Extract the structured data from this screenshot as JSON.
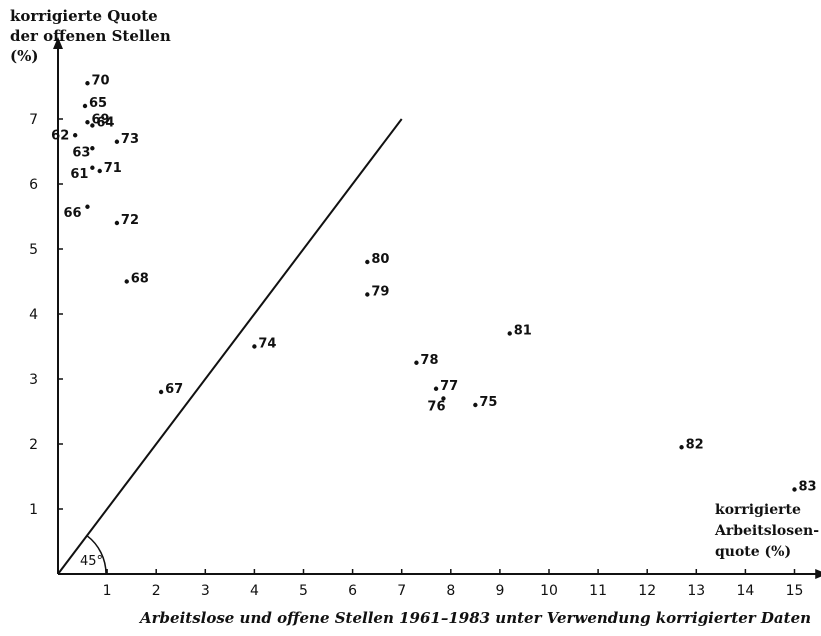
{
  "chart_data": {
    "type": "scatter",
    "ylabel_lines": [
      "korrigierte Quote",
      "der offenen Stellen",
      "(%)"
    ],
    "xlabel_lines": [
      "korrigierte",
      "Arbeitslosen-",
      "quote (%)"
    ],
    "caption": "Arbeitslose und offene Stellen 1961–1983 unter Verwendung korrigierter Daten",
    "angle_label": "45°",
    "xlim": [
      0,
      15.3
    ],
    "ylim": [
      0,
      7.8
    ],
    "xticks": [
      "1",
      "2",
      "3",
      "4",
      "5",
      "6",
      "7",
      "8",
      "9",
      "10",
      "11",
      "12",
      "13",
      "14",
      "15"
    ],
    "yticks": [
      "1",
      "2",
      "3",
      "4",
      "5",
      "6",
      "7"
    ],
    "reference_line": {
      "from": [
        0,
        0
      ],
      "to": [
        7,
        7
      ]
    },
    "points": [
      {
        "label": "70",
        "x": 0.6,
        "y": 7.55
      },
      {
        "label": "65",
        "x": 0.55,
        "y": 7.2
      },
      {
        "label": "69",
        "x": 0.6,
        "y": 6.95
      },
      {
        "label": "64",
        "x": 0.7,
        "y": 6.9
      },
      {
        "label": "73",
        "x": 1.2,
        "y": 6.65
      },
      {
        "label": "62",
        "x": 0.35,
        "y": 6.75
      },
      {
        "label": "63",
        "x": 0.7,
        "y": 6.55
      },
      {
        "label": "61",
        "x": 0.7,
        "y": 6.25
      },
      {
        "label": "71",
        "x": 0.85,
        "y": 6.2
      },
      {
        "label": "66",
        "x": 0.6,
        "y": 5.65
      },
      {
        "label": "72",
        "x": 1.2,
        "y": 5.4
      },
      {
        "label": "68",
        "x": 1.4,
        "y": 4.5
      },
      {
        "label": "67",
        "x": 2.1,
        "y": 2.8
      },
      {
        "label": "74",
        "x": 4.0,
        "y": 3.5
      },
      {
        "label": "80",
        "x": 6.3,
        "y": 4.8
      },
      {
        "label": "79",
        "x": 6.3,
        "y": 4.3
      },
      {
        "label": "78",
        "x": 7.3,
        "y": 3.25
      },
      {
        "label": "77",
        "x": 7.7,
        "y": 2.85
      },
      {
        "label": "76",
        "x": 7.85,
        "y": 2.7
      },
      {
        "label": "75",
        "x": 8.5,
        "y": 2.6
      },
      {
        "label": "81",
        "x": 9.2,
        "y": 3.7
      },
      {
        "label": "82",
        "x": 12.7,
        "y": 1.95
      },
      {
        "label": "83",
        "x": 15.0,
        "y": 1.3
      }
    ]
  }
}
